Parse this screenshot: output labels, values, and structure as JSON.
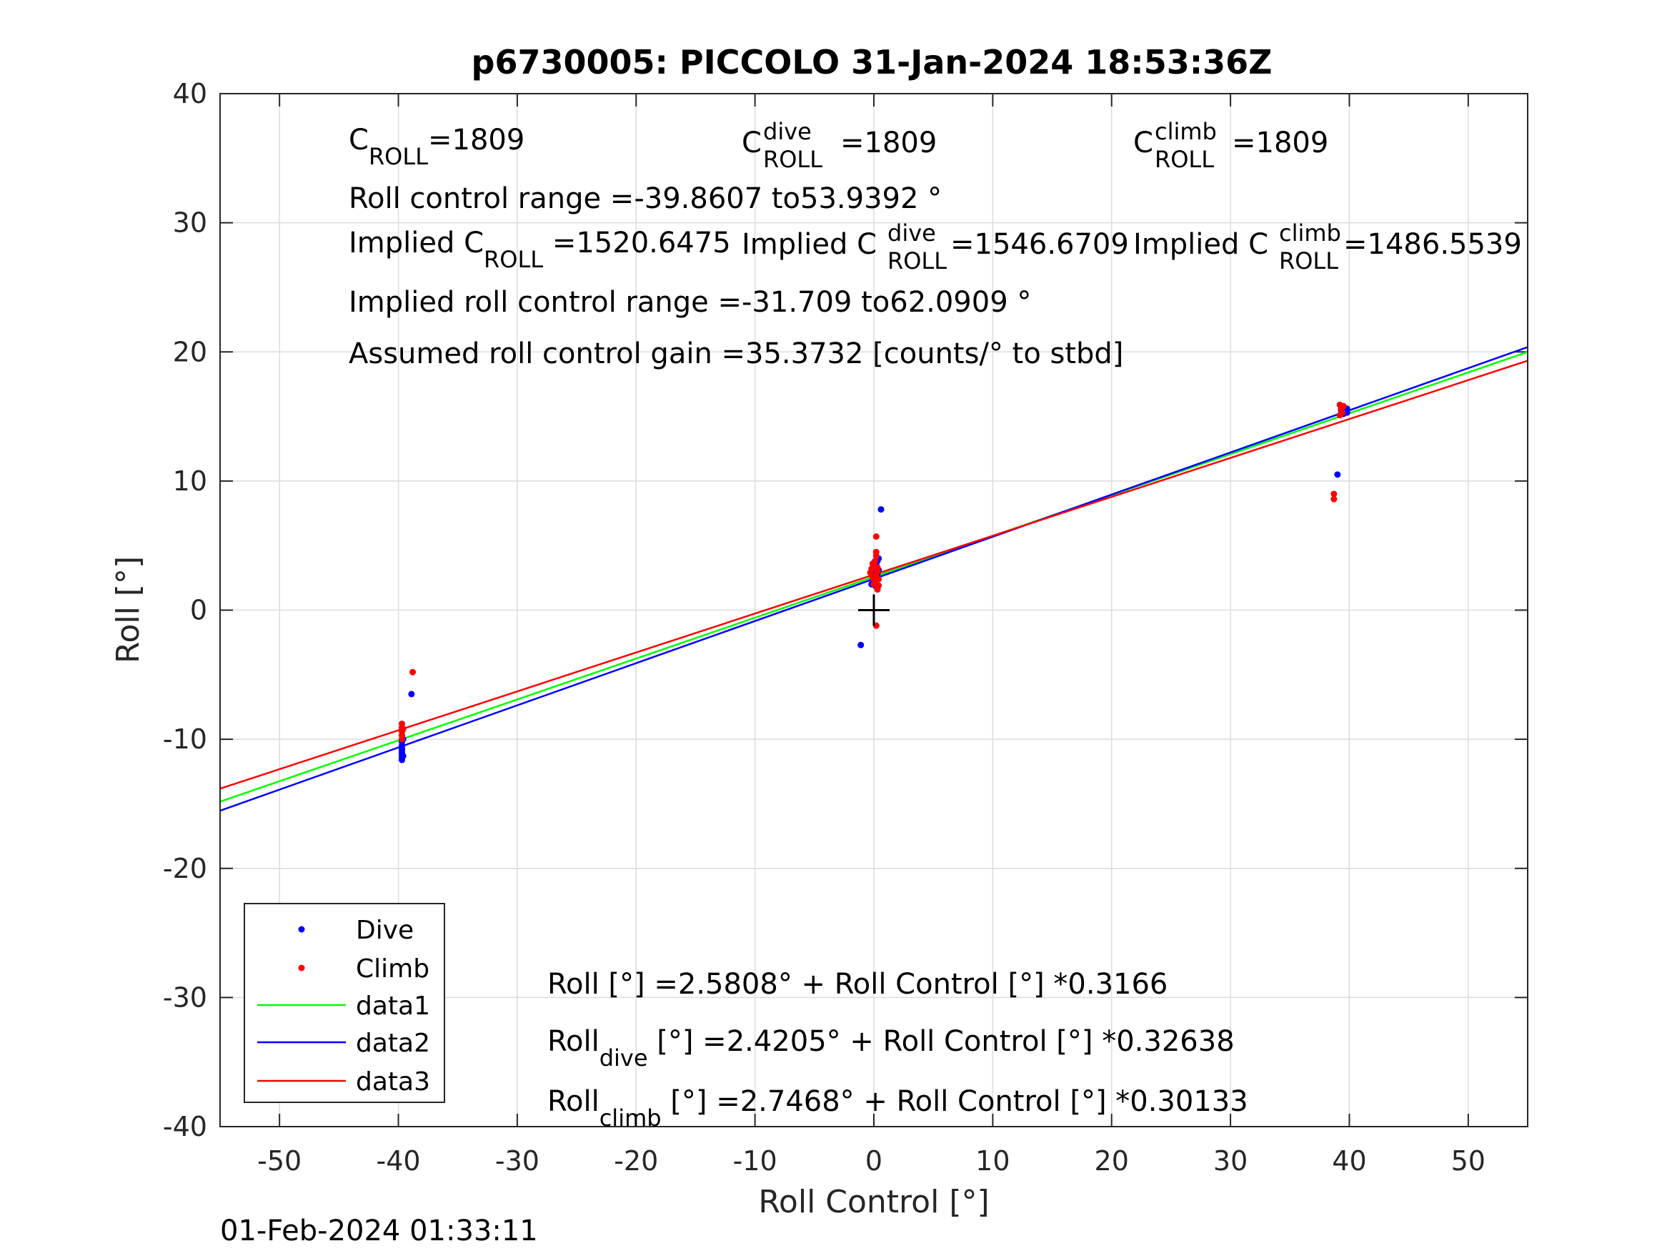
{
  "title": "p6730005: PICCOLO 31-Jan-2024 18:53:36Z",
  "timestamp": "01-Feb-2024 01:33:11",
  "annotations": {
    "c_roll": {
      "symbol": "C",
      "sub": "ROLL",
      "value": "=1809"
    },
    "c_roll_dive": {
      "symbol": "C",
      "sup": "dive",
      "sub": "ROLL",
      "value": "=1809"
    },
    "c_roll_climb": {
      "symbol": "C",
      "sup": "climb",
      "sub": "ROLL",
      "value": "=1809"
    },
    "roll_control_range": "Roll control range =-39.8607 to53.9392 °",
    "implied_c_roll": {
      "prefix": "Implied C",
      "sub": "ROLL",
      "value": " =1520.6475"
    },
    "implied_c_roll_dive": {
      "prefix": "Implied C",
      "sup": "dive",
      "sub": "ROLL",
      "value": " =1546.6709"
    },
    "implied_c_roll_climb": {
      "prefix": "Implied C",
      "sup": "climb",
      "sub": "ROLL",
      "value": " =1486.5539"
    },
    "implied_range": "Implied roll control range =-31.709 to62.0909 °",
    "assumed_gain": "Assumed roll control gain =35.3732 [counts/° to stbd]",
    "eq_all": "Roll [°] =2.5808° + Roll Control [°] *0.3166",
    "eq_dive": {
      "prefix": "Roll",
      "sub": "dive",
      "rest": " [°] =2.4205° + Roll Control [°] *0.32638"
    },
    "eq_climb": {
      "prefix": "Roll",
      "sub": "climb",
      "rest": " [°] =2.7468° + Roll Control [°] *0.30133"
    }
  },
  "chart_data": {
    "type": "scatter",
    "title": "p6730005: PICCOLO 31-Jan-2024 18:53:36Z",
    "xlabel": "Roll Control [°]",
    "ylabel": "Roll [°]",
    "xlim": [
      -55,
      55
    ],
    "ylim": [
      -40,
      40
    ],
    "xticks": [
      -50,
      -40,
      -30,
      -20,
      -10,
      0,
      10,
      20,
      30,
      40,
      50
    ],
    "yticks": [
      -40,
      -30,
      -20,
      -10,
      0,
      10,
      20,
      30,
      40
    ],
    "grid": true,
    "legend_position": "bottom-left",
    "series": [
      {
        "name": "Dive",
        "kind": "points",
        "color": "#0000ff",
        "points": [
          [
            -39.7,
            -10.2
          ],
          [
            -39.7,
            -10.5
          ],
          [
            -39.7,
            -10.8
          ],
          [
            -39.7,
            -11.0
          ],
          [
            -39.7,
            -11.2
          ],
          [
            -39.7,
            -11.4
          ],
          [
            -39.7,
            -11.6
          ],
          [
            -39.6,
            -10.0
          ],
          [
            -39.6,
            -11.3
          ],
          [
            -39.7,
            -10.7
          ],
          [
            -38.9,
            -6.5
          ],
          [
            -1.1,
            -2.7
          ],
          [
            0.6,
            7.8
          ],
          [
            -0.2,
            2.0
          ],
          [
            -0.1,
            2.3
          ],
          [
            0.0,
            2.6
          ],
          [
            0.0,
            2.9
          ],
          [
            0.1,
            3.2
          ],
          [
            0.1,
            2.1
          ],
          [
            0.2,
            3.5
          ],
          [
            0.2,
            2.4
          ],
          [
            0.3,
            3.8
          ],
          [
            0.3,
            2.8
          ],
          [
            0.4,
            3.1
          ],
          [
            0.4,
            4.0
          ],
          [
            0.1,
            1.9
          ],
          [
            0.0,
            3.4
          ],
          [
            39.0,
            10.5
          ],
          [
            39.5,
            15.2
          ],
          [
            39.6,
            15.4
          ],
          [
            39.8,
            15.6
          ],
          [
            39.8,
            15.3
          ],
          [
            39.3,
            15.5
          ]
        ]
      },
      {
        "name": "Climb",
        "kind": "points",
        "color": "#ff0000",
        "points": [
          [
            -39.7,
            -8.8
          ],
          [
            -39.7,
            -9.1
          ],
          [
            -39.7,
            -9.4
          ],
          [
            -39.7,
            -9.7
          ],
          [
            -39.7,
            -10.0
          ],
          [
            -39.6,
            -9.2
          ],
          [
            -38.8,
            -4.8
          ],
          [
            0.2,
            -1.2
          ],
          [
            0.2,
            5.7
          ],
          [
            -0.3,
            2.9
          ],
          [
            -0.2,
            3.2
          ],
          [
            -0.1,
            2.5
          ],
          [
            0.0,
            3.5
          ],
          [
            0.1,
            2.2
          ],
          [
            0.1,
            3.8
          ],
          [
            0.2,
            2.7
          ],
          [
            0.2,
            4.2
          ],
          [
            0.3,
            3.0
          ],
          [
            0.3,
            1.6
          ],
          [
            0.3,
            3.3
          ],
          [
            0.4,
            2.4
          ],
          [
            0.4,
            1.9
          ],
          [
            0.0,
            2.0
          ],
          [
            -0.1,
            3.6
          ],
          [
            0.2,
            4.5
          ],
          [
            38.7,
            9.0
          ],
          [
            38.7,
            8.6
          ],
          [
            39.2,
            15.9
          ],
          [
            39.3,
            15.6
          ],
          [
            39.4,
            15.3
          ],
          [
            39.2,
            15.1
          ],
          [
            39.5,
            15.8
          ]
        ]
      },
      {
        "name": "data1",
        "kind": "line",
        "color": "#00ff00",
        "x": [
          -55,
          55
        ],
        "y": [
          -14.8332,
          19.9948
        ]
      },
      {
        "name": "data2",
        "kind": "line",
        "color": "#0000ff",
        "x": [
          -55,
          55
        ],
        "y": [
          -15.5304,
          20.3713
        ]
      },
      {
        "name": "data3",
        "kind": "line",
        "color": "#ff0000",
        "x": [
          -55,
          55
        ],
        "y": [
          -13.8264,
          19.32
        ]
      }
    ],
    "marker": {
      "x": 0,
      "y": 0,
      "symbol": "+",
      "color": "#000000"
    }
  }
}
